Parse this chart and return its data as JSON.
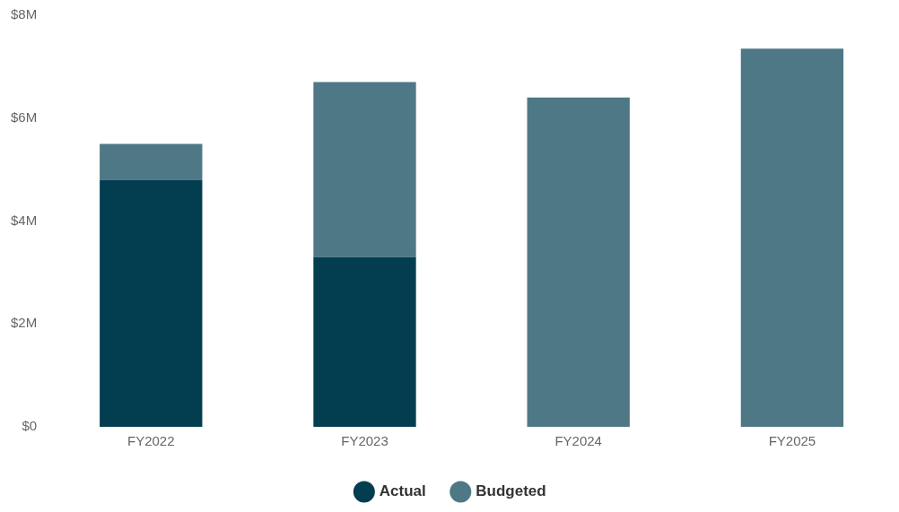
{
  "chart_data": {
    "type": "bar",
    "stacked": true,
    "categories": [
      "FY2022",
      "FY2023",
      "FY2024",
      "FY2025"
    ],
    "series": [
      {
        "name": "Actual",
        "color": "#023e50",
        "values": [
          4.8,
          3.3,
          null,
          null
        ]
      },
      {
        "name": "Budgeted",
        "color": "#4e7885",
        "values": [
          0.7,
          3.4,
          6.4,
          7.35
        ]
      }
    ],
    "ylim": [
      0,
      8
    ],
    "yticks": [
      {
        "value": 0,
        "label": "$0"
      },
      {
        "value": 2,
        "label": "$2M"
      },
      {
        "value": 4,
        "label": "$4M"
      },
      {
        "value": 6,
        "label": "$6M"
      },
      {
        "value": 8,
        "label": "$8M"
      }
    ],
    "grid": false,
    "legend": "bottom"
  }
}
